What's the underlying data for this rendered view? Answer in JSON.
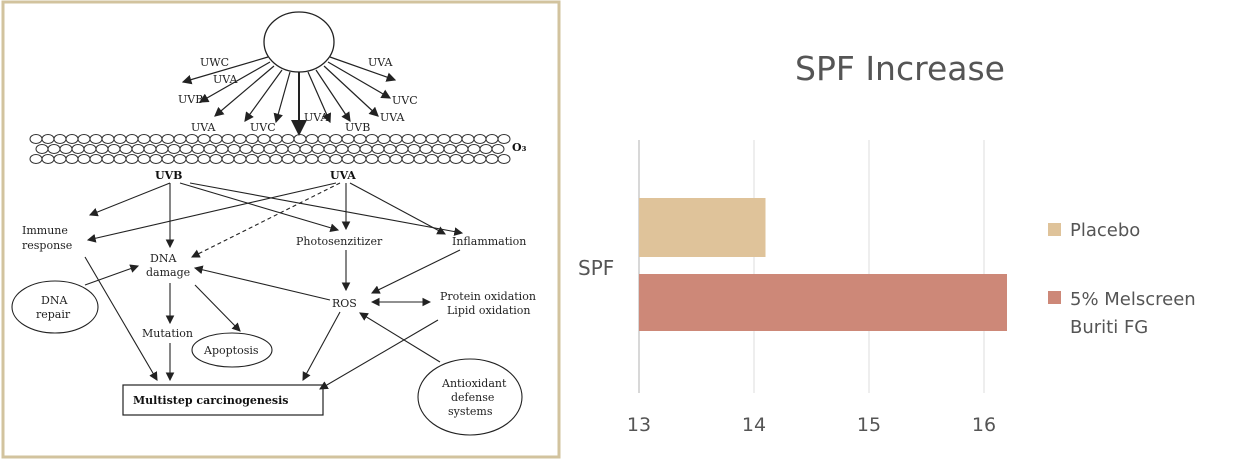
{
  "diagram": {
    "rays_top": [
      "UWC",
      "UVA",
      "UVB",
      "UVA",
      "UVC",
      "UVA",
      "UVB",
      "UVA",
      "UVC",
      "UVA"
    ],
    "ozone_label": "O₃",
    "uvb": "UVB",
    "uva": "UVA",
    "immune_line1": "Immune",
    "immune_line2": "response",
    "dna_damage_line1": "DNA",
    "dna_damage_line2": "damage",
    "photosensitizer": "Photosenzitizer",
    "inflammation": "Inflammation",
    "dna_repair_line1": "DNA",
    "dna_repair_line2": "repair",
    "ros": "ROS",
    "protein_oxidation": "Protein oxidation",
    "lipid_oxidation": "Lipid oxidation",
    "mutation": "Mutation",
    "apoptosis": "Apoptosis",
    "carcinogenesis": "Multistep carcinogenesis",
    "antioxidant_line1": "Antioxidant",
    "antioxidant_line2": "defense",
    "antioxidant_line3": "systems"
  },
  "chart_data": {
    "type": "bar",
    "orientation": "horizontal",
    "title": "SPF Increase",
    "categories": [
      "SPF"
    ],
    "series": [
      {
        "name": "Placebo",
        "values": [
          14.1
        ],
        "color": "#dfc39a"
      },
      {
        "name": "5% Melscreen Buriti FG",
        "values": [
          16.2
        ],
        "color": "#cd8878"
      }
    ],
    "xlim": [
      13,
      16.3
    ],
    "xticks": [
      "13",
      "14",
      "15",
      "16"
    ],
    "grid": true,
    "legend_position": "right"
  },
  "legend": {
    "placebo": "Placebo",
    "melscreen_line1": "5% Melscreen",
    "melscreen_line2": "Buriti FG"
  }
}
